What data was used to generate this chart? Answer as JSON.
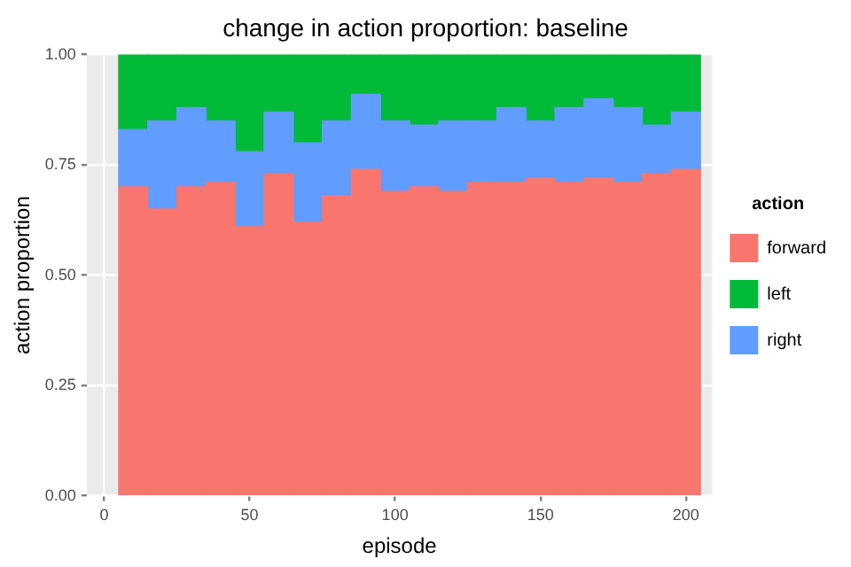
{
  "chart_data": {
    "type": "bar",
    "stacked": true,
    "title": "change in action proportion: baseline",
    "xlabel": "episode",
    "ylabel": "action proportion",
    "legend_title": "action",
    "legend": "right",
    "grid": true,
    "x": [
      10,
      20,
      30,
      40,
      50,
      60,
      70,
      80,
      90,
      100,
      110,
      120,
      130,
      140,
      150,
      160,
      170,
      180,
      190,
      200
    ],
    "xlim": [
      -6,
      209
    ],
    "xticks": [
      {
        "value": 0,
        "label": "0"
      },
      {
        "value": 50,
        "label": "50"
      },
      {
        "value": 100,
        "label": "100"
      },
      {
        "value": 150,
        "label": "150"
      },
      {
        "value": 200,
        "label": "200"
      }
    ],
    "ylim": [
      0,
      1
    ],
    "yticks": [
      {
        "value": 0,
        "label": "0.00"
      },
      {
        "value": 0.25,
        "label": "0.25"
      },
      {
        "value": 0.5,
        "label": "0.50"
      },
      {
        "value": 0.75,
        "label": "0.75"
      },
      {
        "value": 1,
        "label": "1.00"
      }
    ],
    "series": [
      {
        "name": "forward",
        "color": "#f8766d",
        "values": [
          0.7,
          0.65,
          0.7,
          0.71,
          0.61,
          0.73,
          0.62,
          0.68,
          0.74,
          0.69,
          0.7,
          0.69,
          0.71,
          0.71,
          0.72,
          0.71,
          0.72,
          0.71,
          0.73,
          0.74
        ]
      },
      {
        "name": "right",
        "color": "#619cff",
        "values": [
          0.13,
          0.2,
          0.18,
          0.14,
          0.17,
          0.14,
          0.18,
          0.17,
          0.17,
          0.16,
          0.14,
          0.16,
          0.14,
          0.17,
          0.13,
          0.17,
          0.18,
          0.17,
          0.11,
          0.13
        ]
      },
      {
        "name": "left",
        "color": "#00ba38",
        "values": [
          0.17,
          0.15,
          0.12,
          0.15,
          0.22,
          0.13,
          0.2,
          0.15,
          0.09,
          0.15,
          0.16,
          0.15,
          0.15,
          0.12,
          0.15,
          0.12,
          0.1,
          0.12,
          0.16,
          0.13
        ]
      }
    ]
  }
}
